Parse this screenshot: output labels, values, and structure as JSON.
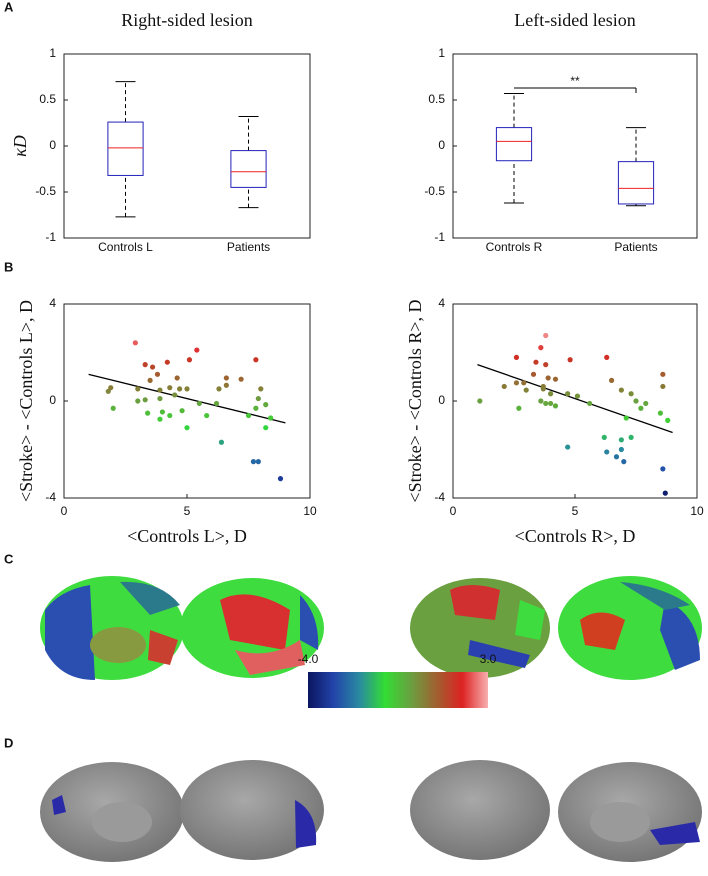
{
  "panels": [
    "A",
    "B",
    "C",
    "D"
  ],
  "colorbar": {
    "ticks": [
      {
        "value": -4,
        "label": "-4.0"
      },
      {
        "value": 3,
        "label": "3.0"
      }
    ],
    "colors": [
      "#0b1560",
      "#2244aa",
      "#2a8aa0",
      "#33dd33",
      "#6aa040",
      "#a06030",
      "#dd2222",
      "#f8b0b0"
    ]
  },
  "chart_data": [
    {
      "type": "box",
      "title": "Right-sided lesion",
      "ylabel": "κD",
      "categories": [
        "Controls L",
        "Patients"
      ],
      "boxes": [
        {
          "min": -0.77,
          "q1": -0.32,
          "median": -0.02,
          "q3": 0.26,
          "max": 0.7
        },
        {
          "min": -0.67,
          "q1": -0.45,
          "median": -0.28,
          "q3": -0.05,
          "max": 0.32
        }
      ],
      "ylim": [
        -1,
        1
      ],
      "yticks": [
        -1,
        -0.5,
        0,
        0.5,
        1
      ],
      "box_color": "#2222bb",
      "median_color": "#ee2222"
    },
    {
      "type": "box",
      "title": "Left-sided lesion",
      "categories": [
        "Controls R",
        "Patients"
      ],
      "boxes": [
        {
          "min": -0.62,
          "q1": -0.16,
          "median": 0.05,
          "q3": 0.2,
          "max": 0.57
        },
        {
          "min": -0.65,
          "q1": -0.63,
          "median": -0.46,
          "q3": -0.17,
          "max": 0.2
        }
      ],
      "annotation": {
        "text": "**",
        "y": 0.63
      },
      "ylim": [
        -1,
        1
      ],
      "yticks": [
        -1,
        -0.5,
        0,
        0.5,
        1
      ],
      "box_color": "#2222bb",
      "median_color": "#ee2222"
    },
    {
      "type": "scatter",
      "xlabel": "<Controls L>, D",
      "ylabel": "<Stroke> - <Controls L>, D",
      "x": [
        2.9,
        3.3,
        3.6,
        4.2,
        5.1,
        5.4,
        7.8,
        3.8,
        4.6,
        6.6,
        7.2,
        3.5,
        4.3,
        4.7,
        1.8,
        1.9,
        3.0,
        3.9,
        5.0,
        6.3,
        6.6,
        8.0,
        3.0,
        3.3,
        3.9,
        4.5,
        5.5,
        6.2,
        7.9,
        8.2,
        2.0,
        3.4,
        4.0,
        4.3,
        4.8,
        7.8,
        3.9,
        5.8,
        7.5,
        8.4,
        5.0,
        8.2,
        6.4,
        7.7,
        7.9,
        8.8
      ],
      "y": [
        2.4,
        1.5,
        1.4,
        1.6,
        1.7,
        2.1,
        1.7,
        1.1,
        0.95,
        0.95,
        0.9,
        0.85,
        0.55,
        0.5,
        0.4,
        0.55,
        0.5,
        0.45,
        0.5,
        0.5,
        0.65,
        0.5,
        0,
        0.05,
        0.1,
        0.25,
        -0.1,
        -0.1,
        0.1,
        -0.15,
        -0.3,
        -0.5,
        -0.45,
        -0.6,
        -0.4,
        -0.3,
        -0.75,
        -0.6,
        -0.6,
        -0.7,
        -1.1,
        -1.1,
        -1.7,
        -2.5,
        -2.5,
        -3.2
      ],
      "fit": {
        "x": [
          1,
          9
        ],
        "y": [
          1.1,
          -0.9
        ]
      },
      "xlim": [
        0,
        10
      ],
      "xticks": [
        0,
        5,
        10
      ],
      "ylim": [
        -4,
        4
      ],
      "yticks": [
        -4,
        0,
        4
      ]
    },
    {
      "type": "scatter",
      "xlabel": "<Controls R>, D",
      "ylabel": "<Stroke> - <Controls R>, D",
      "x": [
        3.6,
        3.8,
        2.6,
        3.4,
        3.8,
        4.8,
        6.3,
        3.3,
        3.9,
        4.2,
        6.5,
        3.7,
        2.6,
        2.9,
        2.1,
        3.7,
        3.0,
        4.0,
        4.7,
        5.1,
        6.9,
        7.3,
        8.6,
        8.6,
        1.1,
        3.6,
        3.8,
        4.0,
        5.6,
        7.5,
        7.9,
        2.7,
        4.2,
        7.7,
        7.1,
        8.5,
        8.8,
        4.7,
        6.2,
        6.9,
        7.3,
        6.3,
        6.7,
        6.9,
        7.0,
        8.6,
        8.7
      ],
      "y": [
        2.2,
        2.7,
        1.8,
        1.6,
        1.5,
        1.7,
        1.8,
        1.1,
        0.95,
        0.9,
        0.85,
        0.6,
        0.75,
        0.75,
        0.6,
        0.5,
        0.45,
        0.3,
        0.3,
        0.2,
        0.45,
        0.3,
        0.6,
        1.1,
        0,
        0,
        -0.1,
        -0.1,
        -0.1,
        0,
        -0.1,
        -0.3,
        -0.2,
        -0.3,
        -0.7,
        -0.5,
        -0.8,
        -1.9,
        -1.5,
        -1.6,
        -1.5,
        -2.1,
        -2.3,
        -2.0,
        -2.5,
        -2.8,
        -3.8
      ],
      "fit": {
        "x": [
          1,
          9
        ],
        "y": [
          1.5,
          -1.3
        ]
      },
      "xlim": [
        0,
        10
      ],
      "xticks": [
        0,
        5,
        10
      ],
      "ylim": [
        -4,
        4
      ],
      "yticks": [
        -4,
        0,
        4
      ]
    }
  ]
}
